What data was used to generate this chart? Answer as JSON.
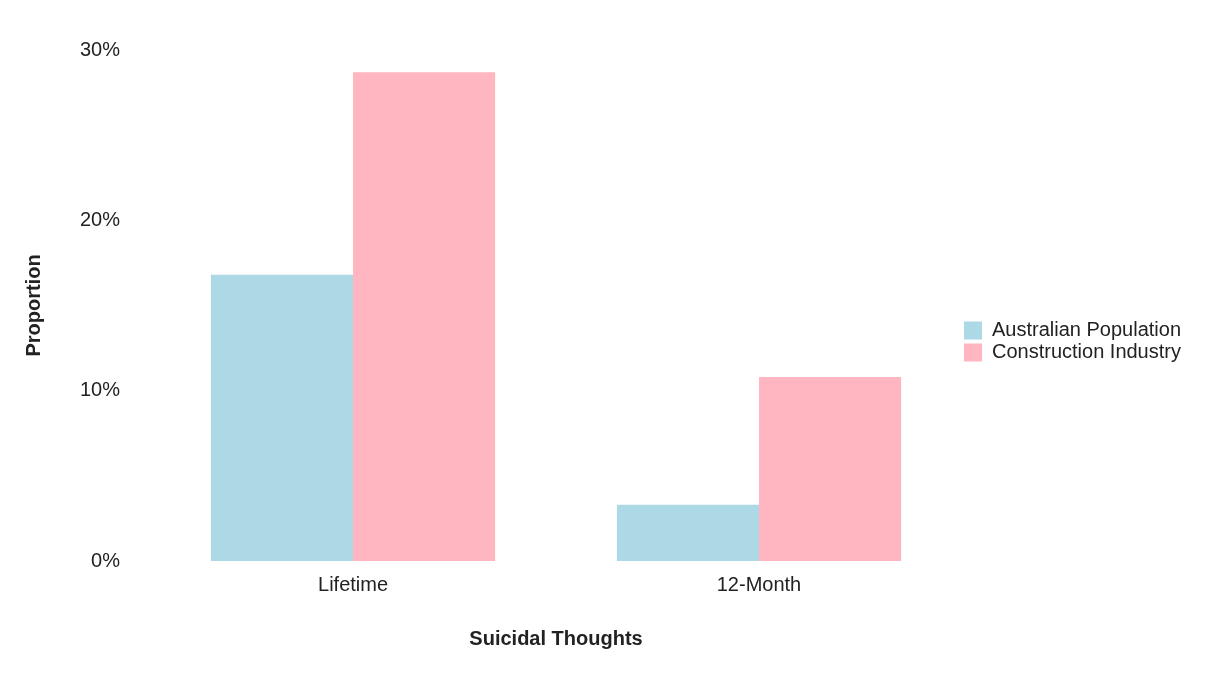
{
  "chart_data": {
    "type": "bar",
    "xlabel": "Suicidal Thoughts",
    "ylabel": "Proportion",
    "categories": [
      "Lifetime",
      "12-Month"
    ],
    "series": [
      {
        "name": "Australian Population",
        "color": "#add8e6",
        "values": [
          16.8,
          3.3
        ]
      },
      {
        "name": "Construction Industry",
        "color": "#ffb6c1",
        "values": [
          28.7,
          10.8
        ]
      }
    ],
    "ylim": [
      0,
      30
    ],
    "yticks": [
      {
        "value": 0,
        "label": "0%"
      },
      {
        "value": 10,
        "label": "10%"
      },
      {
        "value": 20,
        "label": "20%"
      },
      {
        "value": 30,
        "label": "30%"
      }
    ],
    "grid": false,
    "legend": "right"
  }
}
